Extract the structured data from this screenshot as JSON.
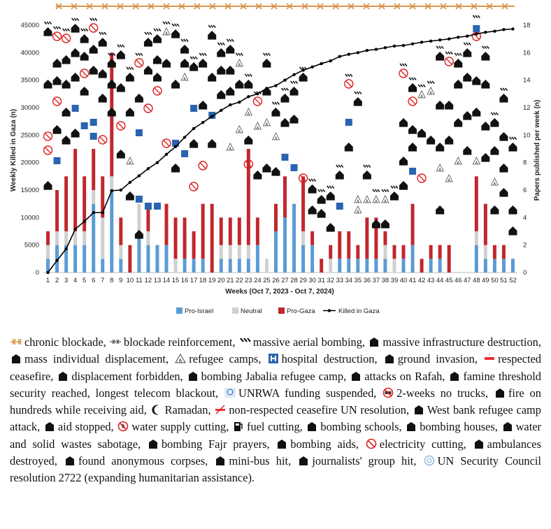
{
  "chart_data": {
    "type": "bar",
    "title": "",
    "xlabel": "Weeks (Oct 7, 2023 - Oct 7, 2024)",
    "ylabel": "Weekly Killed in Gaza (n)",
    "y2label": "Papers published per week (n)",
    "ylim": [
      0,
      45000
    ],
    "y2lim": [
      0,
      18
    ],
    "yticks": [
      "0",
      "5000",
      "10000",
      "15000",
      "20000",
      "25000",
      "30000",
      "35000",
      "40000",
      "45000"
    ],
    "y2ticks": [
      "0",
      "2",
      "4",
      "6",
      "8",
      "10",
      "12",
      "14",
      "16",
      "18"
    ],
    "categories": [
      "1",
      "2",
      "3",
      "4",
      "5",
      "6",
      "7",
      "8",
      "9",
      "10",
      "11",
      "12",
      "13",
      "14",
      "15",
      "16",
      "17",
      "18",
      "19",
      "20",
      "21",
      "22",
      "23",
      "24",
      "25",
      "26",
      "27",
      "28",
      "29",
      "30",
      "31",
      "32",
      "33",
      "34",
      "35",
      "36",
      "37",
      "38",
      "39",
      "40",
      "41",
      "42",
      "43",
      "44",
      "45",
      "46",
      "47",
      "48",
      "49",
      "50",
      "51",
      "52"
    ],
    "stacked": true,
    "series": [
      {
        "name": "Pro-Israel",
        "color": "#5b9bd5",
        "values": [
          1,
          2,
          2,
          2,
          2,
          5,
          1,
          6,
          1,
          0,
          3,
          2,
          2,
          2,
          0,
          1,
          1,
          1,
          0,
          1,
          1,
          1,
          1,
          2,
          0,
          3,
          4,
          5,
          2,
          2,
          0,
          0,
          1,
          1,
          1,
          1,
          1,
          1,
          0,
          1,
          2,
          0,
          1,
          1,
          0,
          0,
          0,
          2,
          1,
          1,
          1,
          1
        ]
      },
      {
        "name": "Neutral",
        "color": "#d0d0d0",
        "values": [
          1,
          1,
          1,
          1,
          1,
          1,
          3,
          1,
          1,
          0,
          2,
          1,
          0,
          0,
          1,
          0,
          0,
          0,
          0,
          1,
          1,
          1,
          1,
          0,
          1,
          0,
          0,
          0,
          1,
          0,
          0,
          1,
          0,
          0,
          0,
          0,
          0,
          1,
          1,
          0,
          0,
          0,
          0,
          0,
          0,
          0,
          0,
          1,
          1,
          0,
          0,
          0
        ]
      },
      {
        "name": "Pro-Gaza",
        "color": "#c0272d",
        "values": [
          1,
          3,
          4,
          6,
          4,
          3,
          3,
          9,
          2,
          2,
          0,
          2,
          0,
          3,
          3,
          3,
          2,
          4,
          5,
          2,
          2,
          2,
          7,
          2,
          0,
          2,
          3,
          0,
          4,
          1,
          1,
          1,
          2,
          2,
          1,
          3,
          3,
          1,
          1,
          1,
          3,
          1,
          1,
          1,
          2,
          0,
          0,
          4,
          3,
          1,
          1,
          0
        ]
      },
      {
        "name": "Killed in Gaza",
        "color": "#000000",
        "type": "line",
        "axis": "left",
        "values": [
          0,
          2200,
          4300,
          7900,
          9300,
          10900,
          10900,
          14900,
          15000,
          16400,
          17600,
          18900,
          20000,
          21500,
          22900,
          24600,
          26200,
          27300,
          28400,
          29500,
          30500,
          31000,
          32000,
          32500,
          33500,
          34000,
          35000,
          36000,
          36800,
          37400,
          38000,
          38500,
          39300,
          39700,
          40000,
          40400,
          40600,
          40900,
          41200,
          41300,
          41600,
          41900,
          42100,
          42300,
          42500,
          42800,
          43000,
          43400,
          43700,
          43900,
          44200,
          44300
        ]
      }
    ],
    "legend_position": "bottom",
    "annotations": "Pictograms above bars indicating weekly events (see caption legend)"
  },
  "legend": {
    "pro_israel": "Pro-Israel",
    "neutral": "Neutral",
    "pro_gaza": "Pro-Gaza",
    "killed": "Killed in Gaza"
  },
  "caption": [
    {
      "icon": "barbed-wire",
      "text": "chronic blockade,"
    },
    {
      "icon": "barbed-wire-small",
      "text": "blockade reinforcement,"
    },
    {
      "icon": "missiles",
      "text": "massive aerial bombing,"
    },
    {
      "icon": "destroyed-building",
      "text": "massive infrastructure destruction,"
    },
    {
      "icon": "running-person",
      "text": "mass individual displacement,"
    },
    {
      "icon": "tent",
      "text": "refugee camps,"
    },
    {
      "icon": "hospital",
      "text": "hospital destruction,"
    },
    {
      "icon": "tank",
      "text": "ground invasion,"
    },
    {
      "icon": "ceasefire",
      "text": "respected ceasefire,"
    },
    {
      "icon": "displacement-forbidden",
      "text": "displacement forbidden,"
    },
    {
      "icon": "bombing-camp",
      "text": "bombing Jabalia refugee camp,"
    },
    {
      "icon": "rafah",
      "text": "attacks on Rafah,"
    },
    {
      "icon": "famine",
      "text": "famine threshold security reached, longest telecom blackout,"
    },
    {
      "icon": "unrwa",
      "text": "UNRWA funding suspended,"
    },
    {
      "icon": "no-trucks",
      "text": "2-weeks no trucks,"
    },
    {
      "icon": "fire-aid",
      "text": "fire on hundreds while receiving aid,"
    },
    {
      "icon": "crescent",
      "text": "Ramadan,"
    },
    {
      "icon": "non-respected-ceasefire",
      "text": "non-respected ceasefire UN resolution,"
    },
    {
      "icon": "westbank-camp",
      "text": "West bank refugee camp attack,"
    },
    {
      "icon": "aid-stopped",
      "text": "aid stopped,"
    },
    {
      "icon": "no-water",
      "text": "water supply cutting,"
    },
    {
      "icon": "fuel",
      "text": "fuel cutting,"
    },
    {
      "icon": "school",
      "text": "bombing schools,"
    },
    {
      "icon": "house",
      "text": "bombing houses,"
    },
    {
      "icon": "waste",
      "text": "water and solid wastes sabotage,"
    },
    {
      "icon": "mosque",
      "text": "bombing Fajr prayers,"
    },
    {
      "icon": "bombing-aids",
      "text": "bombing aids,"
    },
    {
      "icon": "no-electricity",
      "text": "electricity cutting,"
    },
    {
      "icon": "ambulance",
      "text": "ambulances destroyed,"
    },
    {
      "icon": "corpses",
      "text": "found anonymous corpses,"
    },
    {
      "icon": "minibus",
      "text": "mini-bus hit,"
    },
    {
      "icon": "journalists",
      "text": "journalists' group hit,"
    },
    {
      "icon": "un",
      "text": "UN Security Council resolution 2722 (expanding humanitarian assistance)."
    }
  ],
  "colors": {
    "pro_israel": "#5b9bd5",
    "neutral": "#d0d0d0",
    "pro_gaza": "#c0272d",
    "killed": "#000000",
    "blockade": "#d9944a"
  }
}
